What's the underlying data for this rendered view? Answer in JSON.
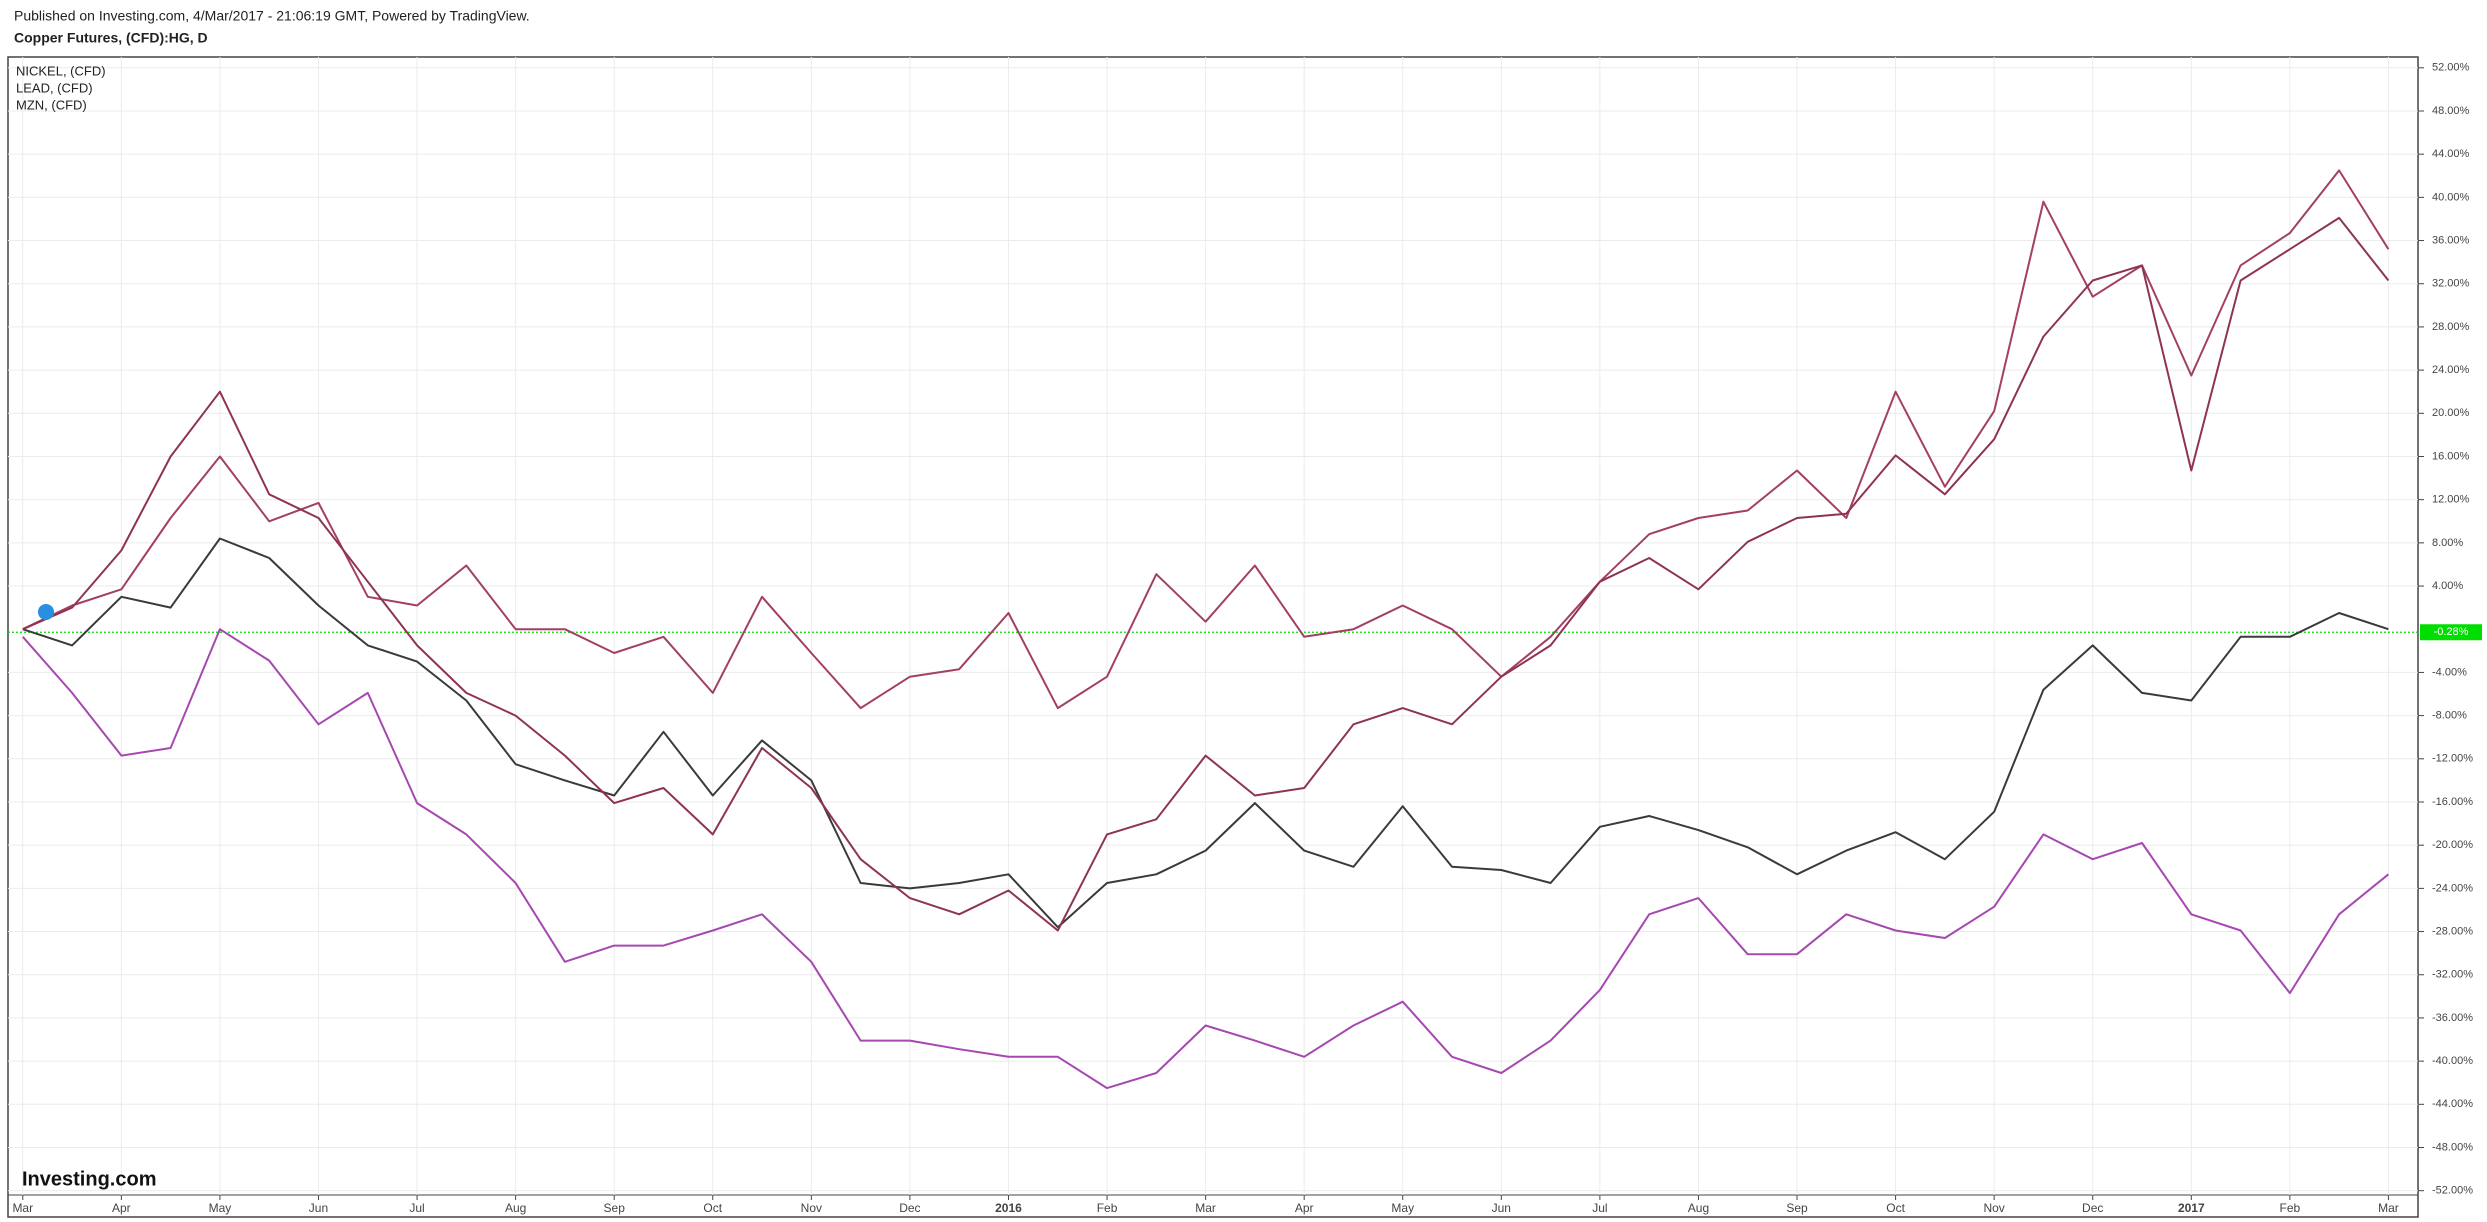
{
  "header": {
    "published": "Published on Investing.com, 4/Mar/2017 - 21:06:19 GMT, Powered by TradingView."
  },
  "chart_data": {
    "type": "line",
    "title": "Copper Futures, (CFD):HG, D",
    "logo": "Investing.com",
    "x": [
      0,
      0.5,
      1,
      1.5,
      2,
      2.5,
      3,
      3.5,
      4,
      4.5,
      5,
      5.5,
      6,
      6.5,
      7,
      7.5,
      8,
      8.5,
      9,
      9.5,
      10,
      10.5,
      11,
      11.5,
      12,
      12.5,
      13,
      13.5,
      14,
      14.5,
      15,
      15.5,
      16,
      16.5,
      17,
      17.5,
      18,
      18.5,
      19,
      19.5,
      20,
      20.5,
      21,
      21.5,
      22,
      22.5,
      23,
      23.5,
      24
    ],
    "xlim": [
      -0.15,
      24.3
    ],
    "xticks": [
      {
        "value": 0,
        "label": "Mar"
      },
      {
        "value": 1,
        "label": "Apr"
      },
      {
        "value": 2,
        "label": "May"
      },
      {
        "value": 3,
        "label": "Jun"
      },
      {
        "value": 4,
        "label": "Jul"
      },
      {
        "value": 5,
        "label": "Aug"
      },
      {
        "value": 6,
        "label": "Sep"
      },
      {
        "value": 7,
        "label": "Oct"
      },
      {
        "value": 8,
        "label": "Nov"
      },
      {
        "value": 9,
        "label": "Dec"
      },
      {
        "value": 10,
        "label": "2016"
      },
      {
        "value": 11,
        "label": "Feb"
      },
      {
        "value": 12,
        "label": "Mar"
      },
      {
        "value": 13,
        "label": "Apr"
      },
      {
        "value": 14,
        "label": "May"
      },
      {
        "value": 15,
        "label": "Jun"
      },
      {
        "value": 16,
        "label": "Jul"
      },
      {
        "value": 17,
        "label": "Aug"
      },
      {
        "value": 18,
        "label": "Sep"
      },
      {
        "value": 19,
        "label": "Oct"
      },
      {
        "value": 20,
        "label": "Nov"
      },
      {
        "value": 21,
        "label": "Dec"
      },
      {
        "value": 22,
        "label": "2017"
      },
      {
        "value": 23,
        "label": "Feb"
      },
      {
        "value": 24,
        "label": "Mar"
      }
    ],
    "ylim": [
      -52.4,
      53.0
    ],
    "yticks": [
      {
        "value": 52,
        "label": "52.00%"
      },
      {
        "value": 48,
        "label": "48.00%"
      },
      {
        "value": 44,
        "label": "44.00%"
      },
      {
        "value": 40,
        "label": "40.00%"
      },
      {
        "value": 36,
        "label": "36.00%"
      },
      {
        "value": 32,
        "label": "32.00%"
      },
      {
        "value": 28,
        "label": "28.00%"
      },
      {
        "value": 24,
        "label": "24.00%"
      },
      {
        "value": 20,
        "label": "20.00%"
      },
      {
        "value": 16,
        "label": "16.00%"
      },
      {
        "value": 12,
        "label": "12.00%"
      },
      {
        "value": 8,
        "label": "8.00%"
      },
      {
        "value": 4,
        "label": "4.00%"
      },
      {
        "value": -4,
        "label": "-4.00%"
      },
      {
        "value": -8,
        "label": "-8.00%"
      },
      {
        "value": -12,
        "label": "-12.00%"
      },
      {
        "value": -16,
        "label": "-16.00%"
      },
      {
        "value": -20,
        "label": "-20.00%"
      },
      {
        "value": -24,
        "label": "-24.00%"
      },
      {
        "value": -28,
        "label": "-28.00%"
      },
      {
        "value": -32,
        "label": "-32.00%"
      },
      {
        "value": -36,
        "label": "-36.00%"
      },
      {
        "value": -40,
        "label": "-40.00%"
      },
      {
        "value": -44,
        "label": "-44.00%"
      },
      {
        "value": -48,
        "label": "-48.00%"
      },
      {
        "value": -52,
        "label": "-52.00%"
      }
    ],
    "grid": true,
    "last_value": {
      "value": -0.28,
      "label": "-0.28%",
      "color": "#00dd00"
    },
    "series": [
      {
        "color": "#3a3a3a",
        "values": [
          0,
          -1.5,
          3,
          2,
          8.4,
          6.6,
          2.2,
          -1.5,
          -3,
          -6.6,
          -12.5,
          -14,
          -15.4,
          -9.5,
          -15.4,
          -10.3,
          -14,
          -23.5,
          -24,
          -23.5,
          -22.7,
          -27.6,
          -23.5,
          -22.7,
          -20.5,
          -16.1,
          -20.5,
          -22,
          -16.4,
          -22,
          -22.3,
          -23.5,
          -18.3,
          -17.3,
          -18.6,
          -20.2,
          -22.7,
          -20.5,
          -18.8,
          -21.3,
          -16.9,
          -5.6,
          -1.5,
          -5.9,
          -6.6,
          -0.7,
          -0.7,
          1.5,
          0
        ]
      },
      {
        "name": "NICKEL,  (CFD)",
        "color": "#a548b0",
        "values": [
          -0.7,
          -5.9,
          -11.7,
          -11,
          0,
          -2.9,
          -8.8,
          -5.9,
          -16.1,
          -19,
          -23.5,
          -30.8,
          -29.3,
          -29.3,
          -27.9,
          -26.4,
          -30.8,
          -38.1,
          -38.1,
          -38.9,
          -39.6,
          -39.6,
          -42.5,
          -41.1,
          -36.7,
          -38.1,
          -39.6,
          -36.7,
          -34.5,
          -39.6,
          -41.1,
          -38.1,
          -33.4,
          -26.4,
          -24.9,
          -30.1,
          -30.1,
          -26.4,
          -27.9,
          -28.6,
          -25.7,
          -19,
          -21.3,
          -19.8,
          -26.4,
          -27.9,
          -33.7,
          -26.4,
          -22.7
        ]
      },
      {
        "name": "LEAD,  (CFD)",
        "color": "#a33f62",
        "values": [
          0,
          2.2,
          3.7,
          10.3,
          16,
          10,
          11.7,
          3,
          2.2,
          5.9,
          0,
          0,
          -2.2,
          -0.7,
          -5.9,
          3,
          -2.2,
          -7.3,
          -4.4,
          -3.7,
          1.5,
          -7.3,
          -4.4,
          5.1,
          0.7,
          5.9,
          -0.7,
          0,
          2.2,
          0,
          -4.4,
          -0.7,
          4.4,
          8.8,
          10.3,
          11,
          14.7,
          10.3,
          22,
          13.2,
          20.2,
          39.6,
          30.8,
          33.7,
          23.5,
          33.7,
          36.7,
          42.5,
          35.2
        ]
      },
      {
        "name": "MZN,  (CFD)",
        "color": "#8e3452",
        "values": [
          0,
          2,
          7.3,
          16,
          22,
          12.5,
          10.3,
          4.4,
          -1.5,
          -5.9,
          -8,
          -11.7,
          -16.1,
          -14.7,
          -19,
          -11,
          -14.7,
          -21.3,
          -24.9,
          -26.4,
          -24.2,
          -27.9,
          -19,
          -17.6,
          -11.7,
          -15.4,
          -14.7,
          -8.8,
          -7.3,
          -8.8,
          -4.4,
          -1.5,
          4.4,
          6.6,
          3.7,
          8.1,
          10.3,
          10.7,
          16.1,
          12.5,
          17.6,
          27.1,
          32.3,
          33.7,
          14.7,
          32.3,
          35.2,
          38.1,
          32.3
        ]
      }
    ]
  }
}
